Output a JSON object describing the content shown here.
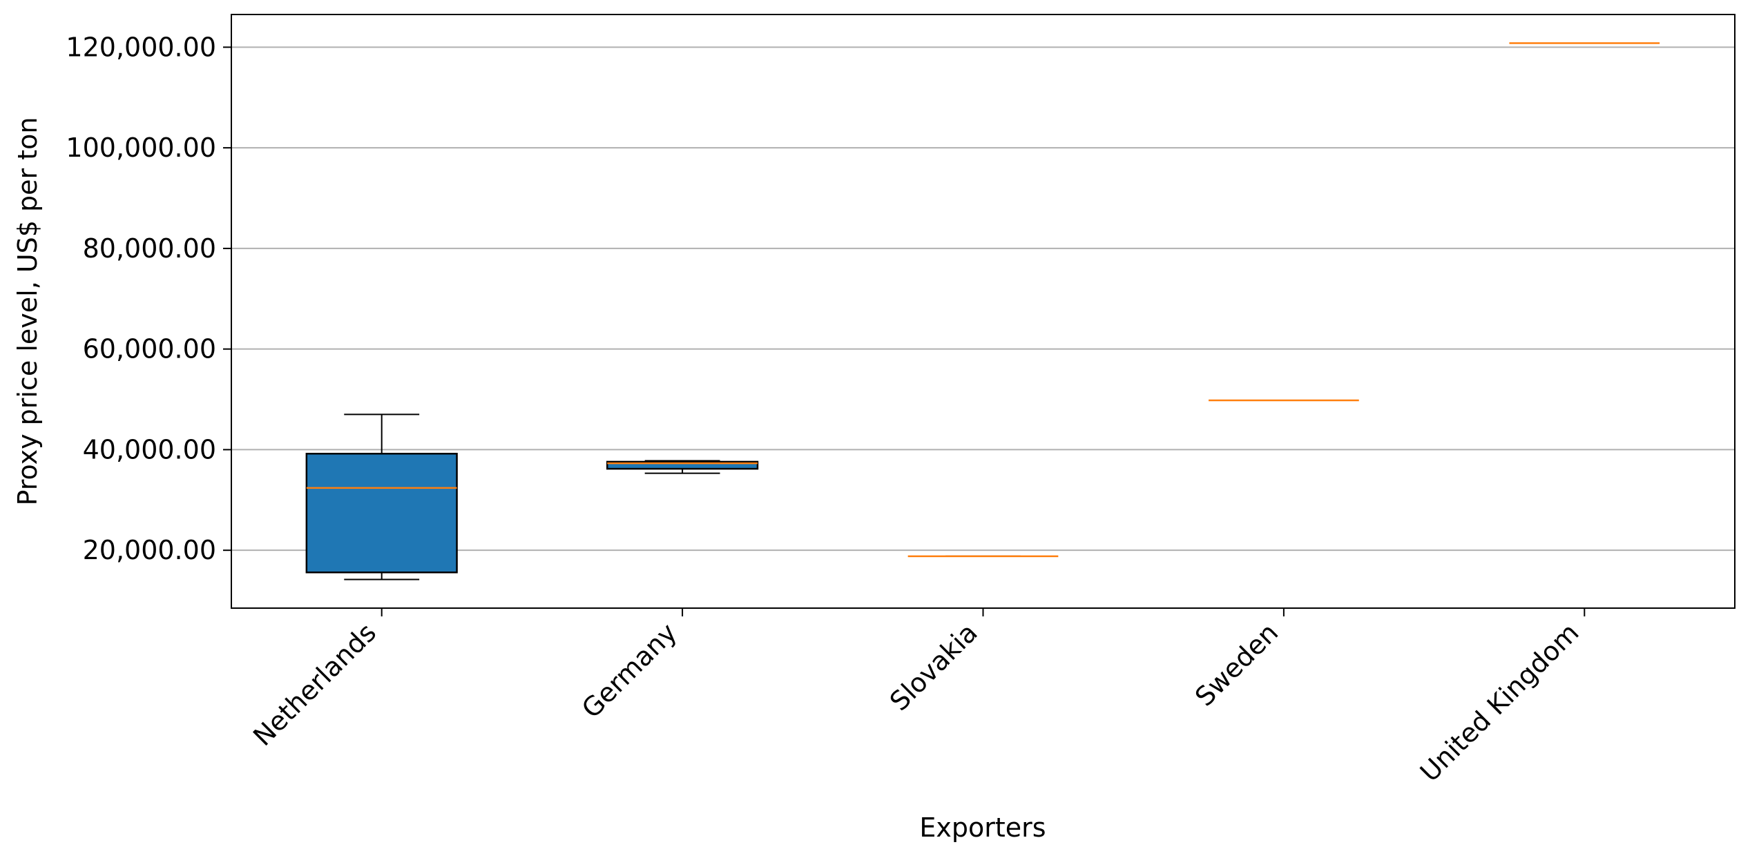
{
  "chart_data": {
    "type": "box",
    "xlabel": "Exporters",
    "ylabel": "Proxy price level, US$ per ton",
    "ylim": [
      8500,
      126500
    ],
    "yticks": [
      20000,
      40000,
      60000,
      80000,
      100000,
      120000
    ],
    "ytick_labels": [
      "20,000.00",
      "40,000.00",
      "60,000.00",
      "80,000.00",
      "100,000.00",
      "120,000.00"
    ],
    "grid": "horizontal",
    "categories": [
      "Netherlands",
      "Germany",
      "Slovakia",
      "Sweden",
      "United Kingdom"
    ],
    "boxes": [
      {
        "whisker_low": 14200,
        "q1": 15600,
        "median": 32400,
        "q3": 39200,
        "whisker_high": 47000
      },
      {
        "whisker_low": 35300,
        "q1": 36200,
        "median": 37300,
        "q3": 37600,
        "whisker_high": 37800
      },
      {
        "whisker_low": 18800,
        "q1": 18800,
        "median": 18800,
        "q3": 18800,
        "whisker_high": 18800
      },
      {
        "whisker_low": 49800,
        "q1": 49800,
        "median": 49800,
        "q3": 49800,
        "whisker_high": 49800
      },
      {
        "whisker_low": 120800,
        "q1": 120800,
        "median": 120800,
        "q3": 120800,
        "whisker_high": 120800
      }
    ],
    "colors": {
      "box_fill": "#1f77b4",
      "median": "#ff7f0e",
      "grid": "#b0b0b0",
      "axes": "#000000"
    }
  }
}
